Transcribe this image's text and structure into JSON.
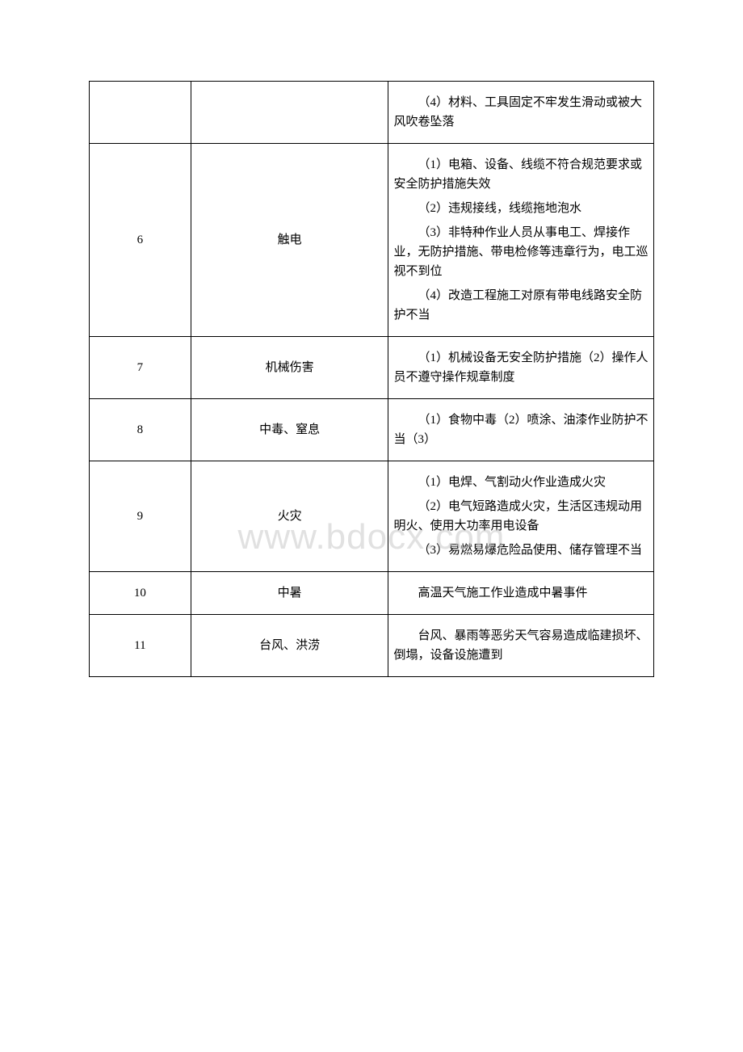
{
  "table": {
    "columns": [
      "num",
      "type",
      "desc"
    ],
    "col_widths": [
      "18%",
      "35%",
      "47%"
    ],
    "border_color": "#000000",
    "font_size": 15,
    "text_color": "#000000",
    "background_color": "#ffffff",
    "rows": [
      {
        "num": "",
        "type": "",
        "desc": [
          "（4）材料、工具固定不牢发生滑动或被大风吹卷坠落"
        ]
      },
      {
        "num": "6",
        "type": "触电",
        "desc": [
          "（1）电箱、设备、线缆不符合规范要求或安全防护措施失效",
          "（2）违规接线，线缆拖地泡水",
          "（3）非特种作业人员从事电工、焊接作业，无防护措施、带电检修等违章行为，电工巡视不到位",
          "（4）改造工程施工对原有带电线路安全防护不当"
        ]
      },
      {
        "num": "7",
        "type": "机械伤害",
        "desc": [
          "（1）机械设备无安全防护措施（2）操作人员不遵守操作规章制度"
        ]
      },
      {
        "num": "8",
        "type": "中毒、窒息",
        "desc": [
          "（1）食物中毒（2）喷涂、油漆作业防护不当（3）"
        ]
      },
      {
        "num": "9",
        "type": "火灾",
        "desc": [
          "（1）电焊、气割动火作业造成火灾",
          "（2）电气短路造成火灾，生活区违规动用明火、使用大功率用电设备",
          "（3）易燃易爆危险品使用、储存管理不当"
        ]
      },
      {
        "num": "10",
        "type": "中暑",
        "desc": [
          "高温天气施工作业造成中暑事件"
        ]
      },
      {
        "num": "11",
        "type": "台风、洪涝",
        "desc": [
          "台风、暴雨等恶劣天气容易造成临建损坏、倒塌，设备设施遭到"
        ]
      }
    ]
  },
  "watermark": {
    "text": "www.bdocx.com",
    "color": "rgba(200, 200, 200, 0.55)",
    "font_size": 44
  }
}
